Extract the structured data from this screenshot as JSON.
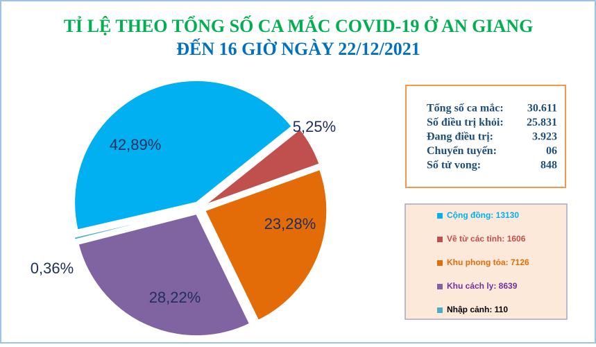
{
  "chart_data": {
    "type": "pie",
    "title": "TỈ LỆ THEO TỔNG SỐ CA MẮC COVID-19 Ở AN GIANG",
    "title_color": "#00b050",
    "subtitle": "ĐẾN 16 GIỜ NGÀY 22/12/2021",
    "subtitle_color": "#0070c0",
    "categories": [
      "Cộng đồng: 13130",
      "Về từ các tỉnh: 1606",
      "Khu phong tỏa: 7126",
      "Khu cách ly: 8639",
      "Nhập cảnh: 110"
    ],
    "values": [
      42.89,
      5.25,
      23.28,
      28.22,
      0.36
    ],
    "value_labels": [
      "42,89%",
      "5,25%",
      "23,28%",
      "28,22%",
      "0,36%"
    ],
    "colors": [
      "#00b0f0",
      "#c0504d",
      "#e36c09",
      "#8064a2",
      "#4bacc6"
    ],
    "legend_text_colors": [
      "#00b0f0",
      "#c0504d",
      "#e36c09",
      "#7030a0",
      "#000000"
    ],
    "legend": "right"
  },
  "info": {
    "rows": [
      {
        "label": "Tổng số ca mắc:",
        "value": "30.611",
        "color": "#1f4e79"
      },
      {
        "label": "Số điều trị khỏi:",
        "value": "25.831",
        "color": "#1f4e79"
      },
      {
        "label": "Đang điều trị:",
        "value": "3.923",
        "color": "#1f4e79"
      },
      {
        "label": "Chuyển tuyến:",
        "value": "06",
        "color": "#1f4e79"
      },
      {
        "label": "Số tử vong:",
        "value": "848",
        "color": "#ff0000"
      }
    ]
  }
}
